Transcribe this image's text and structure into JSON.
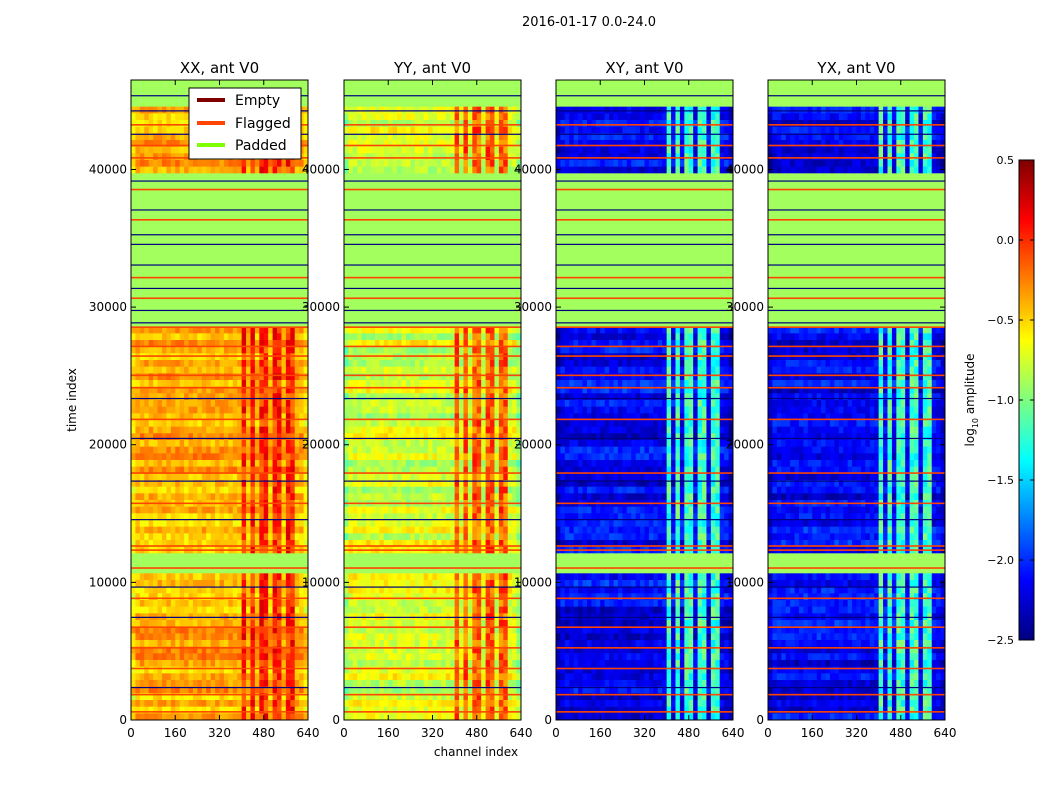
{
  "chart_data": {
    "type": "heatmap",
    "suptitle": "2016-01-17 0.0-24.0",
    "xlabel": "channel index",
    "ylabel": "time index",
    "xlim": [
      0,
      640
    ],
    "ylim": [
      0,
      46500
    ],
    "xticks": [
      0,
      160,
      320,
      480,
      640
    ],
    "yticks": [
      0,
      10000,
      20000,
      30000,
      40000
    ],
    "colorbar": {
      "label_main": "log",
      "label_sub": "10",
      "label_rest": " amplitude",
      "vmin": -2.5,
      "vmax": 0.5,
      "ticks": [
        0.5,
        0.0,
        -0.5,
        -1.0,
        -1.5,
        -2.0,
        -2.5
      ],
      "tick_labels": [
        "0.5",
        "0.0",
        "−0.5",
        "−1.0",
        "−1.5",
        "−2.0",
        "−2.5"
      ],
      "colormap": "jet"
    },
    "legend": {
      "placement": "upper-center of first panel",
      "entries": [
        {
          "label": "Empty",
          "color": "#800000"
        },
        {
          "label": "Flagged",
          "color": "#ff4500"
        },
        {
          "label": "Padded",
          "color": "#7fff00"
        }
      ]
    },
    "panels": [
      {
        "title": "XX, ant V0",
        "level": -0.4,
        "rfi_level": 0.0
      },
      {
        "title": "YY, ant V0",
        "level": -0.75,
        "rfi_level": -0.15
      },
      {
        "title": "XY, ant V0",
        "level": -2.15,
        "rfi_level": -1.2
      },
      {
        "title": "YX, ant V0",
        "level": -2.15,
        "rfi_level": -1.2
      }
    ],
    "rfi_channel_ranges": [
      [
        395,
        415
      ],
      [
        430,
        450
      ],
      [
        470,
        490
      ],
      [
        505,
        540
      ],
      [
        560,
        585
      ]
    ],
    "flagged_time_rows": [
      650,
      1900,
      3800,
      5300,
      6800,
      8900,
      11100,
      12400,
      12700,
      15800,
      18000,
      21900,
      24200,
      25100,
      26500,
      27200,
      28600,
      30700,
      32200,
      36400,
      38600,
      40900,
      41800,
      43300
    ],
    "empty_time_rows": [
      2400,
      7500,
      9700,
      14600,
      17400,
      20500,
      23400,
      25100,
      28900,
      29800,
      31400,
      33100,
      34600,
      35300,
      37100,
      39200,
      42600,
      44300,
      45400
    ],
    "padded_time_bands": [
      [
        10600,
        12300
      ],
      [
        28800,
        33200
      ],
      [
        33600,
        39500
      ],
      [
        44800,
        46500
      ]
    ]
  }
}
